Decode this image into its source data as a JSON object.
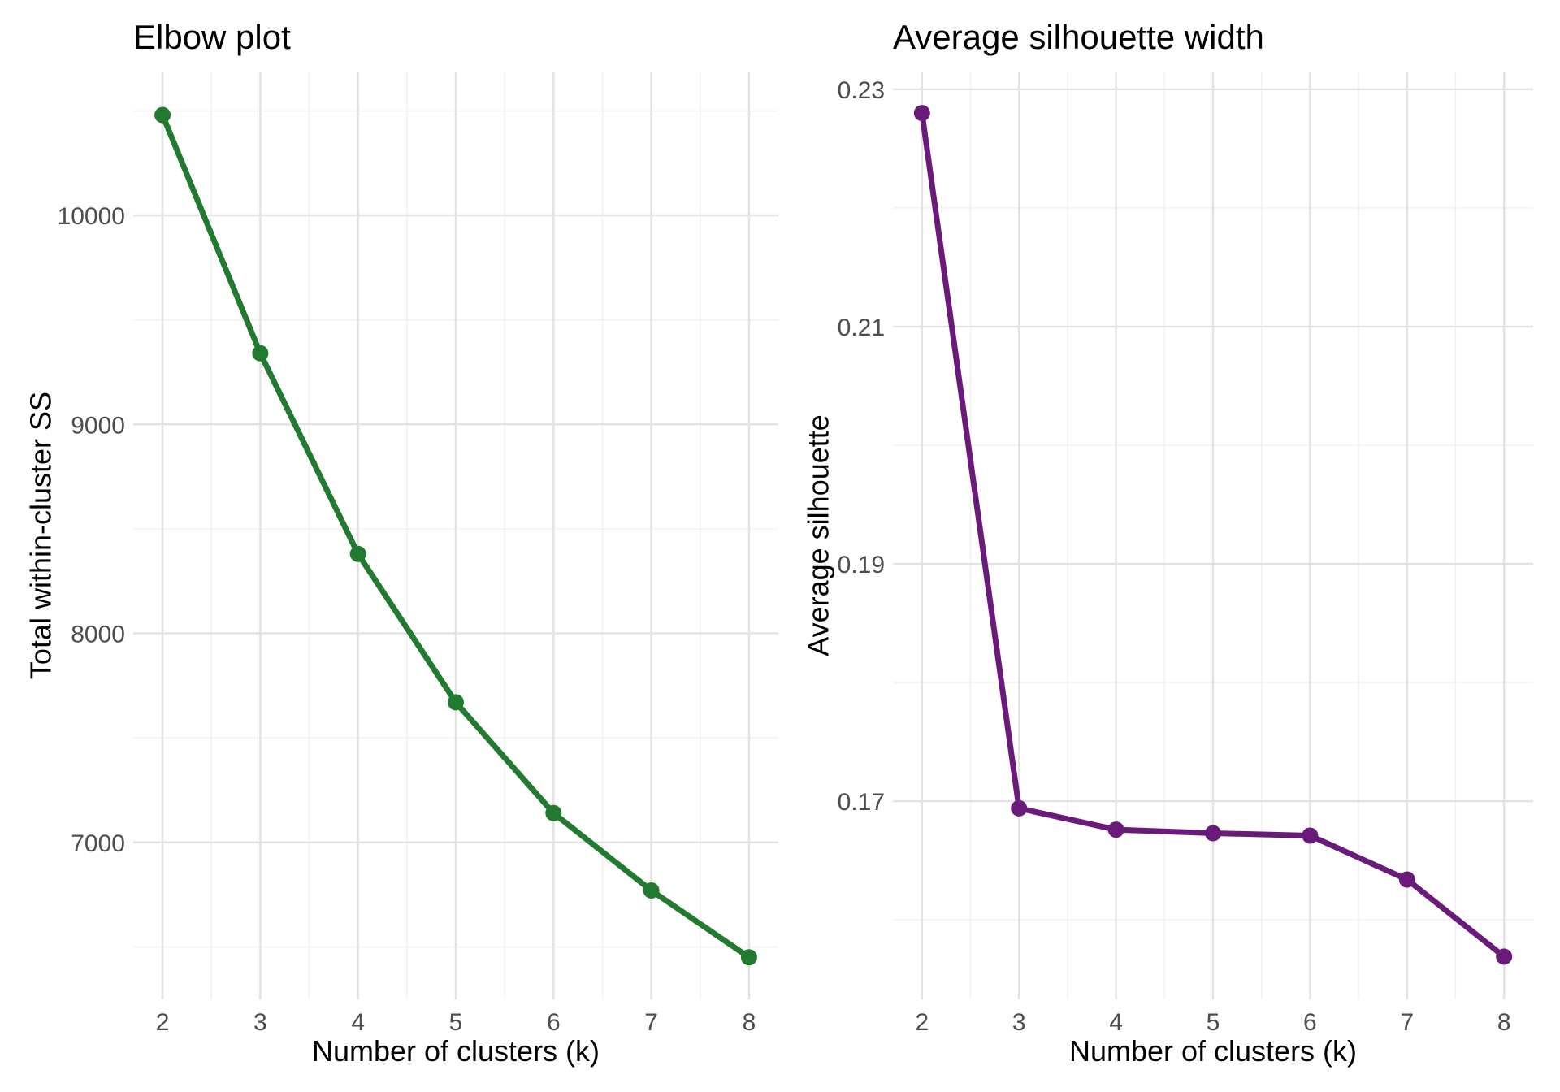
{
  "figure": {
    "description": "Two side-by-side line charts for k-means cluster diagnostics"
  },
  "style": {
    "background": "#ffffff",
    "grid_major_color": "#e3e3e3",
    "grid_minor_color": "#f0f0f0",
    "tick_label_color": "#4d4d4d",
    "axis_title_color": "#000000",
    "title_color": "#000000"
  },
  "chart_data": [
    {
      "type": "line",
      "title": "Elbow plot",
      "xlabel": "Number of clusters (k)",
      "ylabel": "Total within-cluster SS",
      "series_color": "#217a2f",
      "x": [
        2,
        3,
        4,
        5,
        6,
        7,
        8
      ],
      "y": [
        10480,
        9340,
        8380,
        7670,
        7140,
        6770,
        6450
      ],
      "xticks": {
        "values": [
          2,
          3,
          4,
          5,
          6,
          7,
          8
        ],
        "labels": [
          "2",
          "3",
          "4",
          "5",
          "6",
          "7",
          "8"
        ]
      },
      "yticks": {
        "values": [
          7000,
          8000,
          9000,
          10000
        ],
        "labels": [
          "7000",
          "8000",
          "9000",
          "10000"
        ]
      },
      "xlim": [
        1.7,
        8.3
      ],
      "ylim": [
        6249,
        10688
      ],
      "grid": "major+minor",
      "legend": "none",
      "markers": "filled-circle"
    },
    {
      "type": "line",
      "title": "Average silhouette width",
      "xlabel": "Number of clusters (k)",
      "ylabel": "Average silhouette",
      "series_color": "#6a1b7a",
      "x": [
        2,
        3,
        4,
        5,
        6,
        7,
        8
      ],
      "y": [
        0.228,
        0.1694,
        0.1676,
        0.1673,
        0.1671,
        0.1634,
        0.1569
      ],
      "xticks": {
        "values": [
          2,
          3,
          4,
          5,
          6,
          7,
          8
        ],
        "labels": [
          "2",
          "3",
          "4",
          "5",
          "6",
          "7",
          "8"
        ]
      },
      "yticks": {
        "values": [
          0.17,
          0.19,
          0.21,
          0.23
        ],
        "labels": [
          "0.17",
          "0.19",
          "0.21",
          "0.23"
        ]
      },
      "xlim": [
        1.7,
        8.3
      ],
      "ylim": [
        0.1533,
        0.2315
      ],
      "grid": "major+minor",
      "legend": "none",
      "markers": "filled-circle"
    }
  ]
}
